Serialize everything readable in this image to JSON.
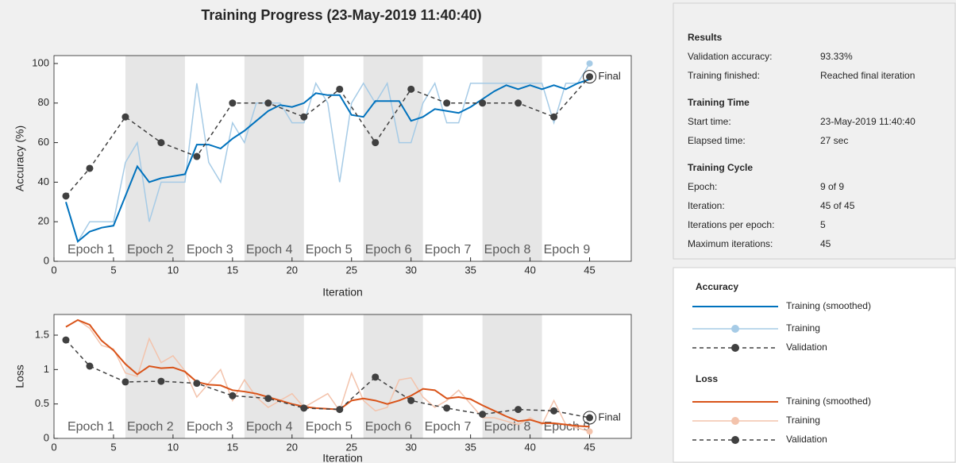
{
  "title": "Training Progress (23-May-2019 11:40:40)",
  "chart_data": [
    {
      "type": "line",
      "legend_title": "Accuracy",
      "xlabel": "Iteration",
      "ylabel": "Accuracy (%)",
      "annotation": "Final",
      "epochs": [
        "Epoch 1",
        "Epoch 2",
        "Epoch 3",
        "Epoch 4",
        "Epoch 5",
        "Epoch 6",
        "Epoch 7",
        "Epoch 8",
        "Epoch 9"
      ],
      "xlim": [
        0,
        48.5
      ],
      "xticks": [
        0,
        5,
        10,
        15,
        20,
        25,
        30,
        35,
        40,
        45
      ],
      "ylim": [
        0,
        104
      ],
      "yticks": [
        0,
        20,
        40,
        60,
        80,
        100
      ],
      "series": [
        {
          "name": "Training (smoothed)",
          "color": "#0072bd",
          "x": [
            1,
            2,
            3,
            4,
            5,
            6,
            7,
            8,
            9,
            10,
            11,
            12,
            13,
            14,
            15,
            16,
            17,
            18,
            19,
            20,
            21,
            22,
            23,
            24,
            25,
            26,
            27,
            28,
            29,
            30,
            31,
            32,
            33,
            34,
            35,
            36,
            37,
            38,
            39,
            40,
            41,
            42,
            43,
            44,
            45
          ],
          "values": [
            30,
            10,
            15,
            17,
            18,
            33,
            48,
            40,
            42,
            43,
            44,
            59,
            59,
            57,
            62,
            66,
            71,
            76,
            79,
            78,
            80,
            85,
            84,
            84,
            74,
            73,
            81,
            81,
            81,
            71,
            73,
            77,
            76,
            75,
            78,
            82,
            86,
            89,
            87,
            89,
            87,
            89,
            87,
            90,
            92
          ]
        },
        {
          "name": "Training",
          "color": "#a6cbe6",
          "x": [
            1,
            2,
            3,
            4,
            5,
            6,
            7,
            8,
            9,
            10,
            11,
            12,
            13,
            14,
            15,
            16,
            17,
            18,
            19,
            20,
            21,
            22,
            23,
            24,
            25,
            26,
            27,
            28,
            29,
            30,
            31,
            32,
            33,
            34,
            35,
            36,
            37,
            38,
            39,
            40,
            41,
            42,
            43,
            44,
            45
          ],
          "values": [
            30,
            10,
            20,
            20,
            20,
            50,
            60,
            20,
            40,
            40,
            40,
            90,
            50,
            40,
            70,
            60,
            80,
            80,
            80,
            70,
            70,
            90,
            80,
            40,
            80,
            90,
            80,
            90,
            60,
            60,
            80,
            90,
            70,
            70,
            90,
            90,
            90,
            90,
            90,
            90,
            90,
            70,
            90,
            90,
            100
          ]
        },
        {
          "name": "Validation",
          "color": "#404040",
          "x": [
            1,
            3,
            6,
            9,
            12,
            15,
            18,
            21,
            24,
            27,
            30,
            33,
            36,
            39,
            42,
            45
          ],
          "values": [
            33,
            47,
            73,
            60,
            53,
            80,
            80,
            73,
            87,
            60,
            87,
            80,
            80,
            80,
            73,
            93.33
          ]
        }
      ]
    },
    {
      "type": "line",
      "legend_title": "Loss",
      "xlabel": "Iteration",
      "ylabel": "Loss",
      "annotation": "Final",
      "epochs": [
        "Epoch 1",
        "Epoch 2",
        "Epoch 3",
        "Epoch 4",
        "Epoch 5",
        "Epoch 6",
        "Epoch 7",
        "Epoch 8",
        "Epoch 9"
      ],
      "xlim": [
        0,
        48.5
      ],
      "xticks": [
        0,
        5,
        10,
        15,
        20,
        25,
        30,
        35,
        40,
        45
      ],
      "ylim": [
        0,
        1.8
      ],
      "yticks": [
        0,
        0.5,
        1,
        1.5
      ],
      "series": [
        {
          "name": "Training (smoothed)",
          "color": "#d95319",
          "x": [
            1,
            2,
            3,
            4,
            5,
            6,
            7,
            8,
            9,
            10,
            11,
            12,
            13,
            14,
            15,
            16,
            17,
            18,
            19,
            20,
            21,
            22,
            23,
            24,
            25,
            26,
            27,
            28,
            29,
            30,
            31,
            32,
            33,
            34,
            35,
            36,
            37,
            38,
            39,
            40,
            41,
            42,
            43,
            44,
            45
          ],
          "values": [
            1.62,
            1.72,
            1.65,
            1.42,
            1.28,
            1.08,
            0.93,
            1.05,
            1.02,
            1.03,
            0.97,
            0.82,
            0.78,
            0.77,
            0.7,
            0.68,
            0.65,
            0.6,
            0.55,
            0.5,
            0.46,
            0.44,
            0.43,
            0.42,
            0.55,
            0.58,
            0.55,
            0.5,
            0.55,
            0.62,
            0.72,
            0.7,
            0.58,
            0.6,
            0.57,
            0.48,
            0.4,
            0.32,
            0.25,
            0.27,
            0.22,
            0.22,
            0.2,
            0.18,
            0.17
          ]
        },
        {
          "name": "Training",
          "color": "#f3c3ac",
          "x": [
            1,
            2,
            3,
            4,
            5,
            6,
            7,
            8,
            9,
            10,
            11,
            12,
            13,
            14,
            15,
            16,
            17,
            18,
            19,
            20,
            21,
            22,
            23,
            24,
            25,
            26,
            27,
            28,
            29,
            30,
            31,
            32,
            33,
            34,
            35,
            36,
            37,
            38,
            39,
            40,
            41,
            42,
            43,
            44,
            45
          ],
          "values": [
            1.62,
            1.72,
            1.6,
            1.35,
            1.3,
            0.95,
            0.9,
            1.45,
            1.1,
            1.2,
            0.98,
            0.6,
            0.8,
            1.0,
            0.55,
            0.85,
            0.6,
            0.45,
            0.55,
            0.65,
            0.45,
            0.55,
            0.65,
            0.4,
            0.95,
            0.55,
            0.4,
            0.45,
            0.85,
            0.88,
            0.6,
            0.45,
            0.55,
            0.7,
            0.5,
            0.3,
            0.3,
            0.25,
            0.2,
            0.3,
            0.2,
            0.55,
            0.2,
            0.15,
            0.1
          ]
        },
        {
          "name": "Validation",
          "color": "#404040",
          "x": [
            1,
            3,
            6,
            9,
            12,
            15,
            18,
            21,
            24,
            27,
            30,
            33,
            36,
            39,
            42,
            45
          ],
          "values": [
            1.43,
            1.05,
            0.82,
            0.83,
            0.8,
            0.62,
            0.58,
            0.44,
            0.42,
            0.89,
            0.55,
            0.44,
            0.35,
            0.42,
            0.4,
            0.3
          ]
        }
      ]
    }
  ],
  "panel": {
    "sections": [
      {
        "heading": "Results",
        "rows": [
          [
            "Validation accuracy:",
            "93.33%"
          ],
          [
            "Training finished:",
            "Reached final iteration"
          ]
        ]
      },
      {
        "heading": "Training Time",
        "rows": [
          [
            "Start time:",
            "23-May-2019 11:40:40"
          ],
          [
            "Elapsed time:",
            "27 sec"
          ]
        ]
      },
      {
        "heading": "Training Cycle",
        "rows": [
          [
            "Epoch:",
            "9 of 9"
          ],
          [
            "Iteration:",
            "45 of 45"
          ],
          [
            "Iterations per epoch:",
            "5"
          ],
          [
            "Maximum iterations:",
            "45"
          ]
        ]
      }
    ]
  }
}
